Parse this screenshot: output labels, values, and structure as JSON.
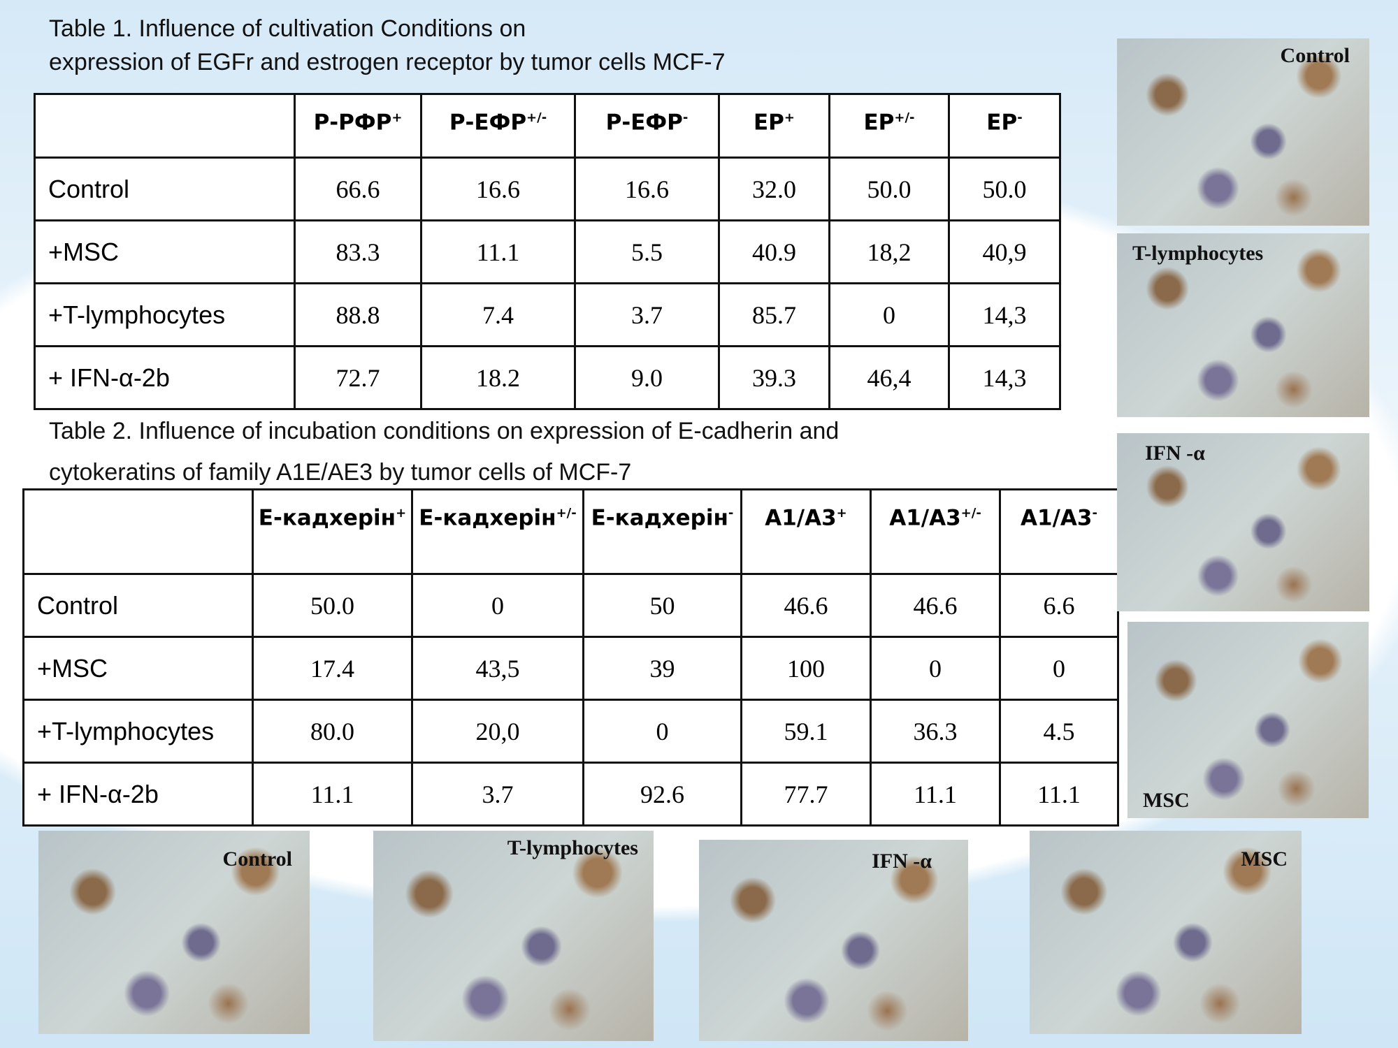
{
  "table1": {
    "title": [
      "Table 1. Influence of cultivation Conditions on",
      "expression of EGFr and estrogen receptor by tumor cells MCF-7"
    ],
    "header": [
      {
        "text": "Р-РФР",
        "sup": "+"
      },
      {
        "text": "Р-ЕФР",
        "sup": "+/-"
      },
      {
        "text": "Р-ЕФР",
        "sup": "-"
      },
      {
        "text": "ЕР",
        "sup": "+"
      },
      {
        "text": "ЕР",
        "sup": "+/-"
      },
      {
        "text": "ЕР",
        "sup": "-"
      }
    ],
    "rows": [
      {
        "label": "Control",
        "cells": [
          "66.6",
          "16.6",
          "16.6",
          "32.0",
          "50.0",
          "50.0"
        ]
      },
      {
        "label": "+MSC",
        "cells": [
          "83.3",
          "11.1",
          "5.5",
          "40.9",
          "18,2",
          "40,9"
        ]
      },
      {
        "label": "+T-lymphocytes",
        "cells": [
          "88.8",
          "7.4",
          "3.7",
          "85.7",
          "0",
          "14,3"
        ]
      },
      {
        "label": "+ IFN-α-2b",
        "cells": [
          "72.7",
          "18.2",
          "9.0",
          "39.3",
          "46,4",
          "14,3"
        ]
      }
    ]
  },
  "table2": {
    "title": [
      "Table 2. Influence of incubation conditions on expression of E-cadherin and",
      "cytokeratins of family A1E/AE3 by tumor cells of MCF-7"
    ],
    "header": [
      {
        "text": "Е-кадхерін",
        "sup": "+"
      },
      {
        "text": "Е-кадхерін",
        "sup": "+/-"
      },
      {
        "text": "Е-кадхерін",
        "sup": "-"
      },
      {
        "text": "A1/A3",
        "sup": "+"
      },
      {
        "text": "A1/A3",
        "sup": "+/-"
      },
      {
        "text": "A1/A3",
        "sup": "-"
      }
    ],
    "rows": [
      {
        "label": "Control",
        "cells": [
          "50.0",
          "0",
          "50",
          "46.6",
          "46.6",
          "6.6"
        ]
      },
      {
        "label": "+MSC",
        "cells": [
          "17.4",
          "43,5",
          "39",
          "100",
          "0",
          "0"
        ]
      },
      {
        "label": "+T-lymphocytes",
        "cells": [
          "80.0",
          "20,0",
          "0",
          "59.1",
          "36.3",
          "4.5"
        ]
      },
      {
        "label": "+ IFN-α-2b",
        "cells": [
          "11.1",
          "3.7",
          "92.6",
          "77.7",
          "11.1",
          "11.1"
        ]
      }
    ]
  },
  "images": {
    "right": [
      {
        "label": "Control"
      },
      {
        "label": "T-lymphocytes"
      },
      {
        "label": "IFN -α"
      },
      {
        "label": "MSC"
      }
    ],
    "bottom": [
      {
        "label": "Control"
      },
      {
        "label": "T-lymphocytes"
      },
      {
        "label": "IFN -α"
      },
      {
        "label": "MSC"
      }
    ]
  }
}
